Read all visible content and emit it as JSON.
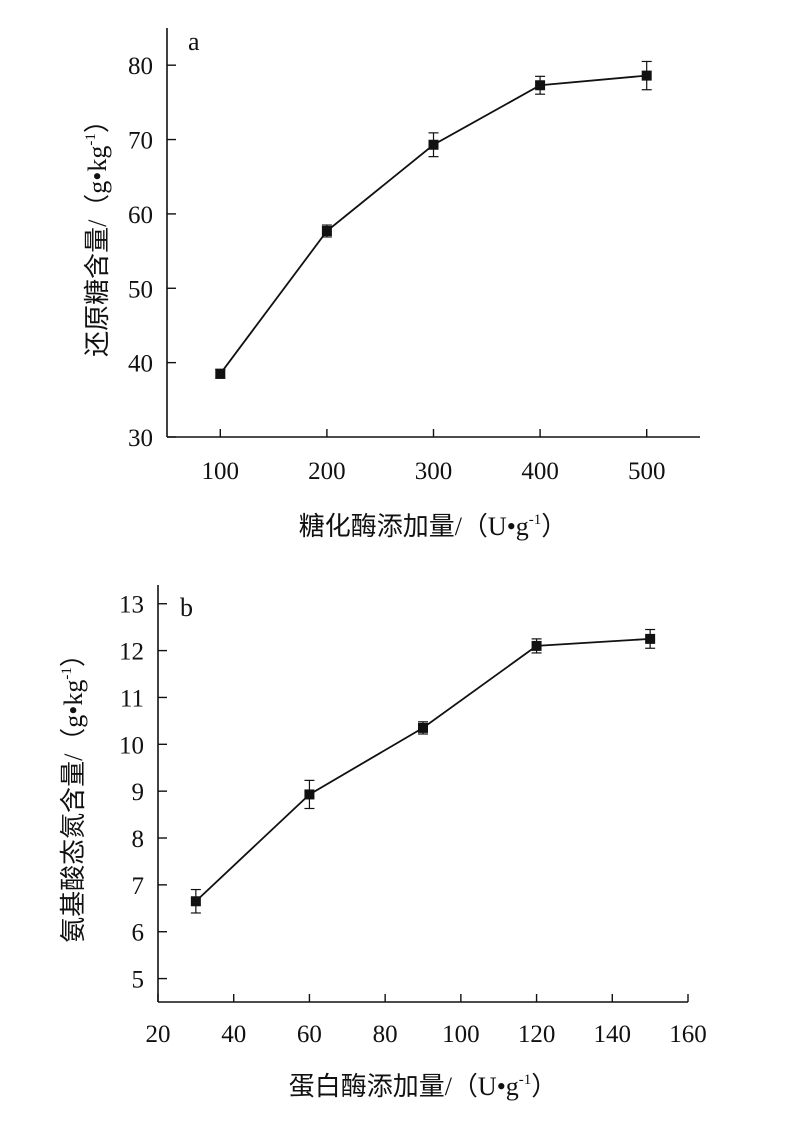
{
  "chart_data": [
    {
      "panel": "a",
      "type": "line",
      "xlabel": "糖化酶添加量/（U•g-1）",
      "xlabel_main": "糖化酶添加量/（U•g",
      "xlabel_sup": "-1",
      "xlabel_end": "）",
      "ylabel": "还原糖含量/（g•kg-1）",
      "ylabel_main": "还原糖含量/（g•kg",
      "ylabel_sup": "-1",
      "ylabel_end": "）",
      "xlim": [
        50,
        550
      ],
      "ylim": [
        30,
        85
      ],
      "xticks": [
        100,
        200,
        300,
        400,
        500
      ],
      "yticks": [
        30,
        40,
        50,
        60,
        70,
        80
      ],
      "x": [
        100,
        200,
        300,
        400,
        500
      ],
      "y": [
        38.5,
        57.7,
        69.3,
        77.3,
        78.6
      ],
      "error": [
        0.6,
        0.8,
        1.6,
        1.2,
        1.9
      ],
      "grid": false,
      "legend": false
    },
    {
      "panel": "b",
      "type": "line",
      "xlabel": "蛋白酶添加量/（U•g-1）",
      "xlabel_main": "蛋白酶添加量/（U•g",
      "xlabel_sup": "-1",
      "xlabel_end": "）",
      "ylabel": "氨基酸态氮含量/（g•kg-1）",
      "ylabel_main": "氨基酸态氮含量/（g•kg",
      "ylabel_sup": "-1",
      "ylabel_end": "）",
      "xlim": [
        20,
        160
      ],
      "ylim": [
        4.5,
        13.4
      ],
      "xticks": [
        20,
        40,
        60,
        80,
        100,
        120,
        140,
        160
      ],
      "yticks": [
        5,
        6,
        7,
        8,
        9,
        10,
        11,
        12,
        13
      ],
      "x": [
        30,
        60,
        90,
        120,
        150
      ],
      "y": [
        6.65,
        8.93,
        10.35,
        12.1,
        12.25
      ],
      "error": [
        0.25,
        0.3,
        0.13,
        0.15,
        0.2
      ],
      "grid": false,
      "legend": false
    }
  ]
}
